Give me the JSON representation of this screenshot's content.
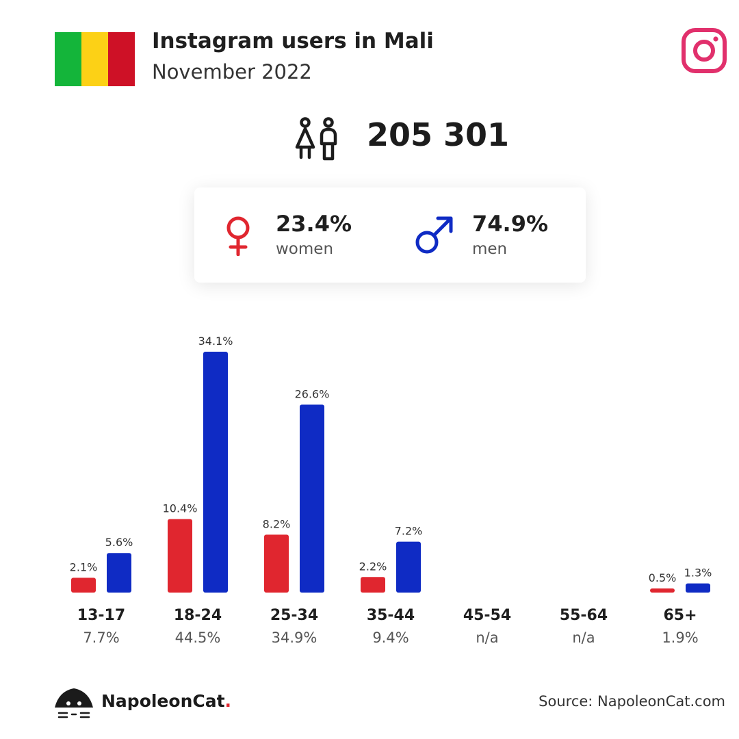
{
  "header": {
    "title": "Instagram users in Mali",
    "subtitle": "November 2022",
    "flag_colors": [
      "#14b53a",
      "#fcd116",
      "#ce1126"
    ],
    "brand_icon": "instagram-icon"
  },
  "total": {
    "icon": "users-icon",
    "value": "205 301"
  },
  "gender": {
    "women": {
      "icon": "female-symbol-icon",
      "pct": "23.4%",
      "label": "women",
      "color": "#e0262f"
    },
    "men": {
      "icon": "male-symbol-icon",
      "pct": "74.9%",
      "label": "men",
      "color": "#0f2bc4"
    }
  },
  "chart_data": {
    "type": "bar",
    "categories": [
      "13-17",
      "18-24",
      "25-34",
      "35-44",
      "45-54",
      "55-64",
      "65+"
    ],
    "category_totals": [
      "7.7%",
      "44.5%",
      "34.9%",
      "9.4%",
      "n/a",
      "n/a",
      "1.9%"
    ],
    "series": [
      {
        "name": "women",
        "color": "#e0262f",
        "values": [
          2.1,
          10.4,
          8.2,
          2.2,
          null,
          null,
          0.5
        ],
        "labels": [
          "2.1%",
          "10.4%",
          "8.2%",
          "2.2%",
          "",
          "",
          "0.5%"
        ]
      },
      {
        "name": "men",
        "color": "#0f2bc4",
        "values": [
          5.6,
          34.1,
          26.6,
          7.2,
          null,
          null,
          1.3
        ],
        "labels": [
          "5.6%",
          "34.1%",
          "26.6%",
          "7.2%",
          "",
          "",
          "1.3%"
        ]
      }
    ],
    "ylim": [
      0,
      34.1
    ],
    "grid": false,
    "legend": "none"
  },
  "footer": {
    "brand_name": "NapoleonCat",
    "brand_dot": ".",
    "source": "Source: NapoleonCat.com"
  }
}
